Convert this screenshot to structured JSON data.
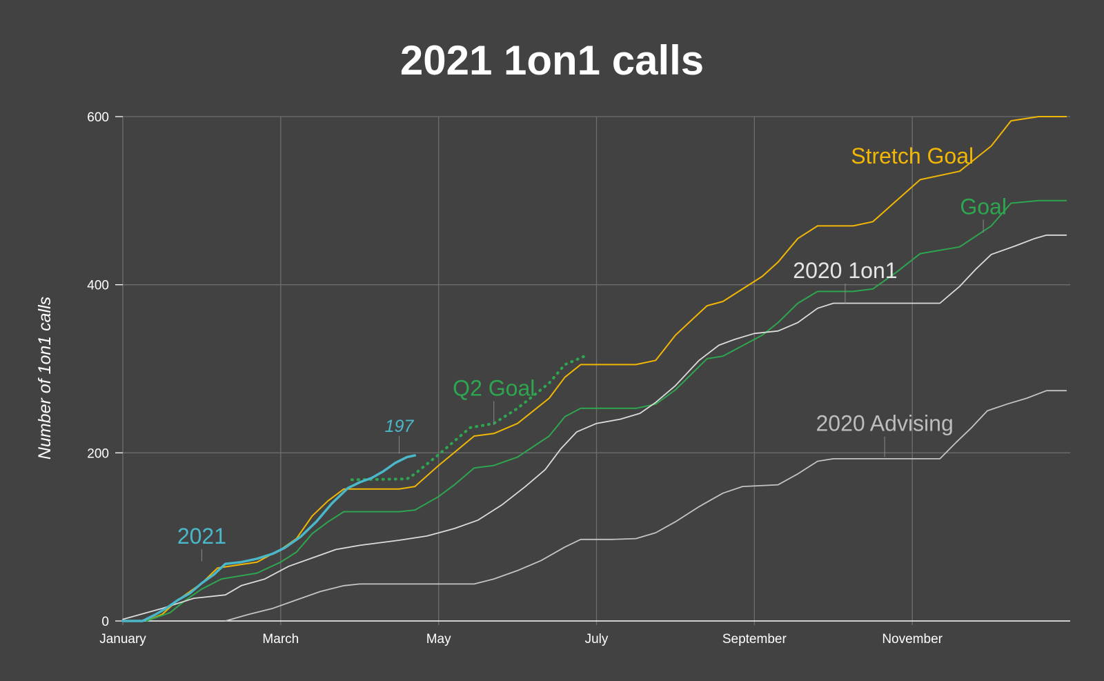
{
  "chart_data": {
    "type": "line",
    "title": "2021 1on1 calls",
    "xlabel": "",
    "ylabel": "Number of 1on1 calls",
    "ylim": [
      0,
      600
    ],
    "yticks": [
      0,
      200,
      400,
      600
    ],
    "xlim": [
      0,
      12
    ],
    "xticks": [
      {
        "label": "January",
        "x": 0
      },
      {
        "label": "March",
        "x": 2
      },
      {
        "label": "May",
        "x": 4
      },
      {
        "label": "July",
        "x": 6
      },
      {
        "label": "September",
        "x": 8
      },
      {
        "label": "November",
        "x": 10
      }
    ],
    "grid": true,
    "colors": {
      "background": "#424242",
      "grid": "#6e6e6e",
      "s2021": "#4ab8c9",
      "stretch": "#f2b705",
      "goal": "#2ea64f",
      "q2goal": "#2ea64f",
      "oneonone2020": "#dcdcdc",
      "advising2020": "#c4c4c4",
      "label2020": "#e6e6e6",
      "labelAdvising": "#bdbdbd"
    },
    "series": [
      {
        "key": "stretch",
        "name": "Stretch Goal",
        "style": "solid",
        "width": 2,
        "points": [
          [
            0.3,
            0
          ],
          [
            0.5,
            8
          ],
          [
            0.7,
            25
          ],
          [
            1.0,
            45
          ],
          [
            1.2,
            63
          ],
          [
            1.7,
            70
          ],
          [
            2.0,
            85
          ],
          [
            2.2,
            98
          ],
          [
            2.4,
            125
          ],
          [
            2.6,
            143
          ],
          [
            2.8,
            157
          ],
          [
            3.0,
            157
          ],
          [
            3.5,
            157
          ],
          [
            3.7,
            160
          ],
          [
            4.0,
            185
          ],
          [
            4.45,
            220
          ],
          [
            4.7,
            223
          ],
          [
            5.0,
            235
          ],
          [
            5.4,
            265
          ],
          [
            5.6,
            290
          ],
          [
            5.8,
            305
          ],
          [
            6.5,
            305
          ],
          [
            6.75,
            310
          ],
          [
            7.0,
            340
          ],
          [
            7.4,
            375
          ],
          [
            7.6,
            380
          ],
          [
            7.8,
            392
          ],
          [
            8.1,
            410
          ],
          [
            8.3,
            427
          ],
          [
            8.55,
            455
          ],
          [
            8.8,
            470
          ],
          [
            9.25,
            470
          ],
          [
            9.5,
            475
          ],
          [
            9.8,
            500
          ],
          [
            10.1,
            525
          ],
          [
            10.6,
            535
          ],
          [
            11.0,
            565
          ],
          [
            11.25,
            595
          ],
          [
            11.6,
            600
          ],
          [
            11.95,
            600
          ]
        ]
      },
      {
        "key": "goal",
        "name": "Goal",
        "style": "solid",
        "width": 2,
        "points": [
          [
            0.3,
            0
          ],
          [
            0.6,
            10
          ],
          [
            0.8,
            25
          ],
          [
            1.0,
            38
          ],
          [
            1.25,
            50
          ],
          [
            1.7,
            57
          ],
          [
            2.0,
            70
          ],
          [
            2.2,
            82
          ],
          [
            2.4,
            104
          ],
          [
            2.6,
            118
          ],
          [
            2.8,
            130
          ],
          [
            3.0,
            130
          ],
          [
            3.5,
            130
          ],
          [
            3.7,
            132
          ],
          [
            4.0,
            148
          ],
          [
            4.2,
            162
          ],
          [
            4.45,
            182
          ],
          [
            4.7,
            185
          ],
          [
            5.0,
            195
          ],
          [
            5.4,
            220
          ],
          [
            5.6,
            243
          ],
          [
            5.8,
            253
          ],
          [
            6.5,
            253
          ],
          [
            6.75,
            258
          ],
          [
            7.0,
            275
          ],
          [
            7.4,
            312
          ],
          [
            7.6,
            315
          ],
          [
            7.8,
            325
          ],
          [
            8.1,
            340
          ],
          [
            8.3,
            355
          ],
          [
            8.55,
            378
          ],
          [
            8.8,
            392
          ],
          [
            9.25,
            392
          ],
          [
            9.5,
            395
          ],
          [
            9.8,
            415
          ],
          [
            10.1,
            437
          ],
          [
            10.6,
            445
          ],
          [
            11.0,
            470
          ],
          [
            11.25,
            497
          ],
          [
            11.6,
            500
          ],
          [
            11.95,
            500
          ]
        ]
      },
      {
        "key": "q2goal",
        "name": "Q2 Goal",
        "style": "dotted",
        "width": 4,
        "points": [
          [
            2.9,
            168
          ],
          [
            3.6,
            169
          ],
          [
            3.7,
            175
          ],
          [
            4.0,
            198
          ],
          [
            4.4,
            230
          ],
          [
            4.7,
            235
          ],
          [
            5.0,
            253
          ],
          [
            5.4,
            283
          ],
          [
            5.6,
            305
          ],
          [
            5.85,
            315
          ]
        ]
      },
      {
        "key": "oneonone2020",
        "name": "2020 1on1",
        "style": "solid",
        "width": 1.8,
        "points": [
          [
            0.0,
            2
          ],
          [
            0.5,
            15
          ],
          [
            0.9,
            27
          ],
          [
            1.3,
            31
          ],
          [
            1.5,
            42
          ],
          [
            1.8,
            50
          ],
          [
            2.1,
            65
          ],
          [
            2.4,
            75
          ],
          [
            2.7,
            85
          ],
          [
            3.0,
            90
          ],
          [
            3.5,
            96
          ],
          [
            3.85,
            101
          ],
          [
            4.2,
            110
          ],
          [
            4.5,
            120
          ],
          [
            4.8,
            138
          ],
          [
            5.1,
            160
          ],
          [
            5.35,
            180
          ],
          [
            5.55,
            205
          ],
          [
            5.75,
            225
          ],
          [
            6.0,
            235
          ],
          [
            6.3,
            240
          ],
          [
            6.55,
            247
          ],
          [
            6.75,
            260
          ],
          [
            7.0,
            280
          ],
          [
            7.3,
            310
          ],
          [
            7.55,
            328
          ],
          [
            7.75,
            335
          ],
          [
            8.0,
            342
          ],
          [
            8.3,
            345
          ],
          [
            8.55,
            355
          ],
          [
            8.8,
            372
          ],
          [
            9.0,
            378
          ],
          [
            9.5,
            378
          ],
          [
            9.9,
            378
          ],
          [
            10.35,
            378
          ],
          [
            10.6,
            398
          ],
          [
            10.8,
            418
          ],
          [
            11.0,
            436
          ],
          [
            11.3,
            446
          ],
          [
            11.55,
            455
          ],
          [
            11.7,
            459
          ],
          [
            11.95,
            459
          ]
        ]
      },
      {
        "key": "advising2020",
        "name": "2020 Advising",
        "style": "solid",
        "width": 1.8,
        "points": [
          [
            1.3,
            0
          ],
          [
            1.6,
            8
          ],
          [
            1.9,
            15
          ],
          [
            2.2,
            25
          ],
          [
            2.5,
            35
          ],
          [
            2.8,
            42
          ],
          [
            3.0,
            44
          ],
          [
            3.5,
            44
          ],
          [
            4.0,
            44
          ],
          [
            4.45,
            44
          ],
          [
            4.7,
            50
          ],
          [
            5.0,
            60
          ],
          [
            5.3,
            72
          ],
          [
            5.6,
            88
          ],
          [
            5.8,
            97
          ],
          [
            6.2,
            97
          ],
          [
            6.5,
            98
          ],
          [
            6.75,
            105
          ],
          [
            7.0,
            118
          ],
          [
            7.3,
            136
          ],
          [
            7.6,
            152
          ],
          [
            7.85,
            160
          ],
          [
            8.3,
            162
          ],
          [
            8.55,
            175
          ],
          [
            8.8,
            190
          ],
          [
            9.0,
            193
          ],
          [
            9.5,
            193
          ],
          [
            10.0,
            193
          ],
          [
            10.35,
            193
          ],
          [
            10.55,
            212
          ],
          [
            10.75,
            230
          ],
          [
            10.95,
            250
          ],
          [
            11.2,
            258
          ],
          [
            11.45,
            265
          ],
          [
            11.7,
            274
          ],
          [
            11.95,
            274
          ]
        ]
      },
      {
        "key": "s2021",
        "name": "2021",
        "style": "solid",
        "width": 3.5,
        "points": [
          [
            0.0,
            0
          ],
          [
            0.25,
            0
          ],
          [
            0.4,
            7
          ],
          [
            0.55,
            15
          ],
          [
            0.7,
            25
          ],
          [
            0.85,
            33
          ],
          [
            1.0,
            45
          ],
          [
            1.15,
            55
          ],
          [
            1.3,
            68
          ],
          [
            1.5,
            70
          ],
          [
            1.7,
            74
          ],
          [
            1.9,
            80
          ],
          [
            2.05,
            87
          ],
          [
            2.25,
            100
          ],
          [
            2.45,
            118
          ],
          [
            2.65,
            140
          ],
          [
            2.85,
            158
          ],
          [
            3.0,
            165
          ],
          [
            3.15,
            170
          ],
          [
            3.3,
            178
          ],
          [
            3.45,
            188
          ],
          [
            3.6,
            195
          ],
          [
            3.7,
            197
          ]
        ]
      }
    ],
    "labels": [
      {
        "series": "s2021",
        "text": "2021",
        "x": 1.0,
        "y": 92,
        "leader": [
          1.0,
          71
        ]
      },
      {
        "series": "q2goal",
        "text": "Q2 Goal",
        "x": 4.7,
        "y": 268,
        "leader": [
          4.7,
          233
        ]
      },
      {
        "series": "stretch",
        "text": "Stretch Goal",
        "x": 10.0,
        "y": 544,
        "leader": null
      },
      {
        "series": "goal",
        "text": "Goal",
        "x": 10.9,
        "y": 484,
        "leader": [
          10.9,
          462
        ]
      },
      {
        "series": "oneonone2020",
        "text": "2020 1on1",
        "x": 9.15,
        "y": 408,
        "leader": [
          9.15,
          378
        ]
      },
      {
        "series": "advising2020",
        "text": "2020 Advising",
        "x": 9.65,
        "y": 226,
        "leader": [
          9.65,
          195
        ]
      }
    ],
    "end_label": {
      "text": "197",
      "x": 3.5,
      "y": 225,
      "leader": [
        3.5,
        199
      ]
    }
  }
}
